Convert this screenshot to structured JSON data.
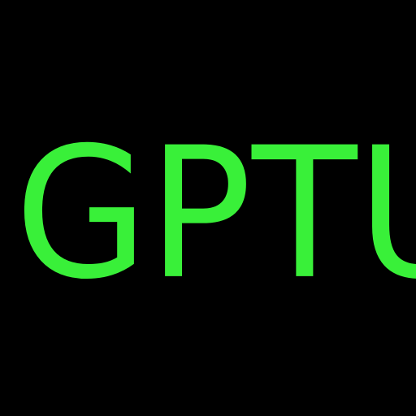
{
  "title": {
    "letters": [
      "G",
      "P",
      "T",
      "U"
    ]
  },
  "colors": {
    "background": "#000000",
    "text": "#39f039"
  }
}
